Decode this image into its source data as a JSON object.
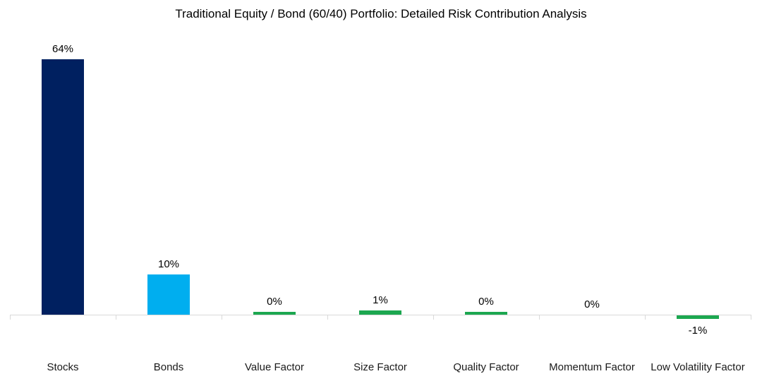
{
  "chart_data": {
    "type": "bar",
    "title": "Traditional Equity / Bond (60/40) Portfolio: Detailed Risk Contribution Analysis",
    "xlabel": "",
    "ylabel": "",
    "grid": false,
    "legend": "none",
    "ylim": [
      -5,
      70
    ],
    "categories": [
      "Stocks",
      "Bonds",
      "Value Factor",
      "Size Factor",
      "Quality Factor",
      "Momentum Factor",
      "Low Volatility Factor"
    ],
    "values": [
      64,
      10,
      0,
      1,
      0,
      0,
      -1
    ],
    "values_est_precise": [
      64,
      10,
      0.7,
      1.05,
      0.7,
      0,
      -0.85
    ],
    "data_labels": [
      "64%",
      "10%",
      "0%",
      "1%",
      "0%",
      "0%",
      "-1%"
    ],
    "bar_colors": [
      "#002060",
      "#00aeef",
      "#1ca750",
      "#1ca750",
      "#1ca750",
      "#1ca750",
      "#1ca750"
    ],
    "axis_color": "#d9d9d9",
    "title_color": "#000000",
    "label_color": "#000000"
  }
}
